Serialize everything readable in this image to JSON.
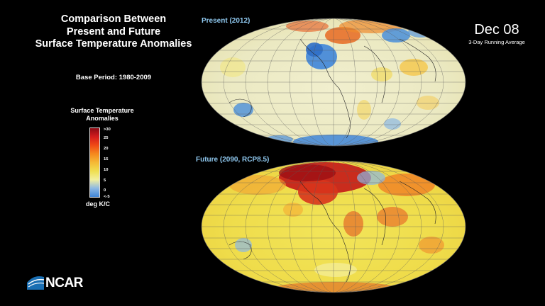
{
  "title_lines": [
    "Comparison Between",
    "Present and Future",
    "Surface Temperature Anomalies"
  ],
  "base_period": "Base Period: 1980-2009",
  "legend": {
    "title_lines": [
      "Surface Temperature",
      "Anomalies"
    ],
    "ticks": [
      ">30",
      "25",
      "20",
      "15",
      "10",
      "5",
      "0",
      "<-5"
    ],
    "unit": "deg K/C",
    "colors": [
      "#8b0a14",
      "#d41c1c",
      "#f04a16",
      "#f58a1e",
      "#f5b935",
      "#f0df50",
      "#f2ef9e",
      "#8cb8e4",
      "#3f86d9"
    ]
  },
  "date": "Dec 08",
  "running_average": "3-Day Running Average",
  "maps": {
    "present_label": "Present (2012)",
    "future_label": "Future (2090, RCP8.5)"
  },
  "logo_text": "NCAR",
  "logo_color": "#1a6fb3"
}
